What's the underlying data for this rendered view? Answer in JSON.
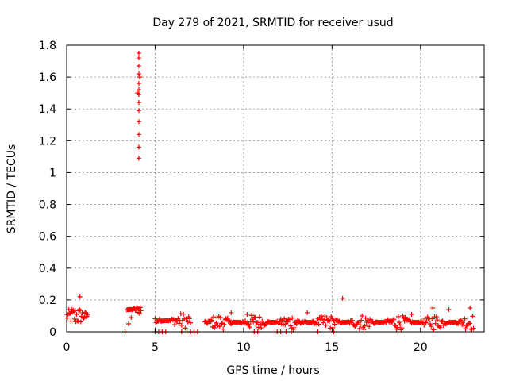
{
  "chart_data": {
    "type": "scatter",
    "title": "Day 279 of 2021, SRMTID for receiver usud",
    "xlabel": "GPS time / hours",
    "ylabel": "SRMTID / TECUs",
    "xlim": [
      0,
      23.6
    ],
    "ylim": [
      0,
      1.8
    ],
    "xticks": [
      0,
      5,
      10,
      15,
      20
    ],
    "yticks": [
      0,
      0.2,
      0.4,
      0.6,
      0.8,
      1,
      1.2,
      1.4,
      1.6,
      1.8
    ],
    "ytick_labels": [
      "0",
      "0.2",
      "0.4",
      "0.6",
      "0.8",
      "1",
      "1.2",
      "1.4",
      "1.6",
      "1.8"
    ],
    "grid": true,
    "marker": "+",
    "series": [
      {
        "name": "SRMTID",
        "color": "#ff0000",
        "segments": [
          {
            "start": 0.0,
            "end": 1.2,
            "base": 0.1,
            "amp": 0.06,
            "step": 0.04
          },
          {
            "start": 3.4,
            "end": 4.2,
            "base": 0.14,
            "amp": 0.05,
            "step": 0.04
          },
          {
            "start": 5.0,
            "end": 7.0,
            "base": 0.07,
            "amp": 0.05,
            "step": 0.05
          },
          {
            "start": 7.8,
            "end": 23.0,
            "base": 0.06,
            "amp": 0.05,
            "step": 0.05
          }
        ],
        "points": [
          [
            0.75,
            0.22
          ],
          [
            3.3,
            0.0
          ],
          [
            3.5,
            0.05
          ],
          [
            3.65,
            0.09
          ],
          [
            4.08,
            1.09
          ],
          [
            4.08,
            1.16
          ],
          [
            4.08,
            1.24
          ],
          [
            4.08,
            1.32
          ],
          [
            4.08,
            1.39
          ],
          [
            4.08,
            1.44
          ],
          [
            4.08,
            1.49
          ],
          [
            4.08,
            1.52
          ],
          [
            4.08,
            1.56
          ],
          [
            4.08,
            1.62
          ],
          [
            4.08,
            1.67
          ],
          [
            4.08,
            1.72
          ],
          [
            4.08,
            1.75
          ],
          [
            4.13,
            1.6
          ],
          [
            4.0,
            1.5
          ],
          [
            5.0,
            0.0
          ],
          [
            5.2,
            0.0
          ],
          [
            5.4,
            0.0
          ],
          [
            5.6,
            0.0
          ],
          [
            6.5,
            0.0
          ],
          [
            6.8,
            0.0
          ],
          [
            7.0,
            0.0
          ],
          [
            7.2,
            0.0
          ],
          [
            7.4,
            0.0
          ],
          [
            10.6,
            0.0
          ],
          [
            10.8,
            0.0
          ],
          [
            11.9,
            0.0
          ],
          [
            12.1,
            0.0
          ],
          [
            12.4,
            0.0
          ],
          [
            12.7,
            0.0
          ],
          [
            14.2,
            0.0
          ],
          [
            15.1,
            0.0
          ],
          [
            13.6,
            0.12
          ],
          [
            15.6,
            0.21
          ],
          [
            19.5,
            0.11
          ],
          [
            20.7,
            0.15
          ],
          [
            22.8,
            0.15
          ],
          [
            21.6,
            0.14
          ],
          [
            10.2,
            0.11
          ],
          [
            9.3,
            0.12
          ]
        ]
      }
    ]
  }
}
